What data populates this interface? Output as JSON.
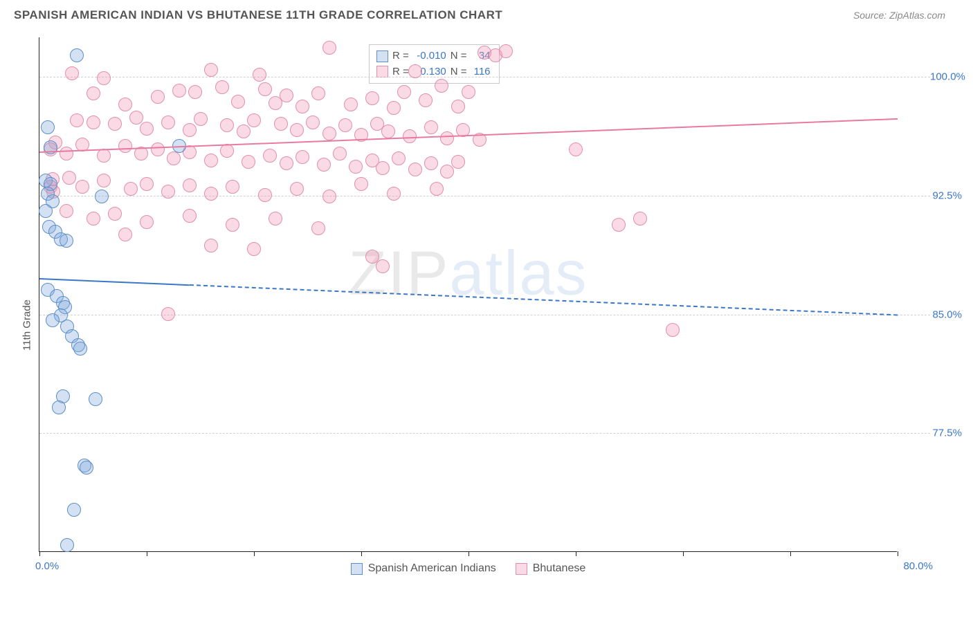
{
  "title": "SPANISH AMERICAN INDIAN VS BHUTANESE 11TH GRADE CORRELATION CHART",
  "source_label": "Source: ZipAtlas.com",
  "yaxis_label": "11th Grade",
  "watermark": {
    "zip": "ZIP",
    "atlas": "atlas"
  },
  "chart": {
    "type": "scatter",
    "xlim": [
      0,
      80
    ],
    "ylim": [
      70,
      102.5
    ],
    "xtick_left": "0.0%",
    "xtick_right": "80.0%",
    "xtick_positions_pct": [
      0,
      12.5,
      25,
      37.5,
      50,
      62.5,
      75,
      87.5,
      100
    ],
    "ytick_labels": [
      "77.5%",
      "85.0%",
      "92.5%",
      "100.0%"
    ],
    "ytick_values": [
      77.5,
      85.0,
      92.5,
      100.0
    ],
    "grid_color": "#d0d0d0",
    "background_color": "#ffffff",
    "point_radius": 10,
    "series": [
      {
        "name": "Spanish American Indians",
        "fill": "rgba(130,170,220,0.35)",
        "stroke": "#5c8fc9",
        "R": "-0.010",
        "N": "34",
        "trend": {
          "y_at_x0": 87.3,
          "y_at_x80": 85.0,
          "solid_until_x": 14
        },
        "points": [
          {
            "x": 3.5,
            "y": 101.3
          },
          {
            "x": 0.8,
            "y": 96.8
          },
          {
            "x": 1.0,
            "y": 95.5
          },
          {
            "x": 13.0,
            "y": 95.6
          },
          {
            "x": 0.6,
            "y": 93.4
          },
          {
            "x": 1.0,
            "y": 93.2
          },
          {
            "x": 0.8,
            "y": 92.6
          },
          {
            "x": 5.8,
            "y": 92.4
          },
          {
            "x": 1.2,
            "y": 92.1
          },
          {
            "x": 0.6,
            "y": 91.5
          },
          {
            "x": 0.9,
            "y": 90.5
          },
          {
            "x": 1.5,
            "y": 90.2
          },
          {
            "x": 2.0,
            "y": 89.7
          },
          {
            "x": 2.5,
            "y": 89.6
          },
          {
            "x": 0.8,
            "y": 86.5
          },
          {
            "x": 1.6,
            "y": 86.1
          },
          {
            "x": 2.2,
            "y": 85.7
          },
          {
            "x": 2.4,
            "y": 85.4
          },
          {
            "x": 2.0,
            "y": 84.9
          },
          {
            "x": 1.2,
            "y": 84.6
          },
          {
            "x": 2.6,
            "y": 84.2
          },
          {
            "x": 3.0,
            "y": 83.6
          },
          {
            "x": 3.6,
            "y": 83.0
          },
          {
            "x": 3.8,
            "y": 82.8
          },
          {
            "x": 2.2,
            "y": 79.8
          },
          {
            "x": 5.2,
            "y": 79.6
          },
          {
            "x": 1.8,
            "y": 79.1
          },
          {
            "x": 4.2,
            "y": 75.4
          },
          {
            "x": 4.4,
            "y": 75.3
          },
          {
            "x": 3.2,
            "y": 72.6
          },
          {
            "x": 2.6,
            "y": 70.4
          }
        ]
      },
      {
        "name": "Bhutanese",
        "fill": "rgba(240,150,180,0.35)",
        "stroke": "#e38fa8",
        "R": "0.130",
        "N": "116",
        "trend": {
          "y_at_x0": 95.3,
          "y_at_x80": 97.4,
          "solid_until_x": 80
        },
        "points": [
          {
            "x": 27,
            "y": 101.8
          },
          {
            "x": 41.5,
            "y": 101.5
          },
          {
            "x": 42.5,
            "y": 101.3
          },
          {
            "x": 43.5,
            "y": 101.6
          },
          {
            "x": 3,
            "y": 100.2
          },
          {
            "x": 6,
            "y": 99.9
          },
          {
            "x": 16,
            "y": 100.4
          },
          {
            "x": 20.5,
            "y": 100.1
          },
          {
            "x": 35,
            "y": 100.3
          },
          {
            "x": 5,
            "y": 98.9
          },
          {
            "x": 8,
            "y": 98.2
          },
          {
            "x": 11,
            "y": 98.7
          },
          {
            "x": 13,
            "y": 99.1
          },
          {
            "x": 14.5,
            "y": 99.0
          },
          {
            "x": 17,
            "y": 99.3
          },
          {
            "x": 18.5,
            "y": 98.4
          },
          {
            "x": 21,
            "y": 99.2
          },
          {
            "x": 22,
            "y": 98.3
          },
          {
            "x": 23,
            "y": 98.8
          },
          {
            "x": 24.5,
            "y": 98.1
          },
          {
            "x": 26,
            "y": 98.9
          },
          {
            "x": 29,
            "y": 98.2
          },
          {
            "x": 31,
            "y": 98.6
          },
          {
            "x": 33,
            "y": 98.0
          },
          {
            "x": 34,
            "y": 99.0
          },
          {
            "x": 36,
            "y": 98.5
          },
          {
            "x": 37.5,
            "y": 99.4
          },
          {
            "x": 39,
            "y": 98.1
          },
          {
            "x": 40,
            "y": 99.0
          },
          {
            "x": 3.5,
            "y": 97.2
          },
          {
            "x": 5,
            "y": 97.1
          },
          {
            "x": 7,
            "y": 97.0
          },
          {
            "x": 9,
            "y": 97.4
          },
          {
            "x": 10,
            "y": 96.7
          },
          {
            "x": 12,
            "y": 97.1
          },
          {
            "x": 14,
            "y": 96.6
          },
          {
            "x": 15,
            "y": 97.3
          },
          {
            "x": 17.5,
            "y": 96.9
          },
          {
            "x": 19,
            "y": 96.5
          },
          {
            "x": 20,
            "y": 97.2
          },
          {
            "x": 22.5,
            "y": 97.0
          },
          {
            "x": 24,
            "y": 96.6
          },
          {
            "x": 25.5,
            "y": 97.1
          },
          {
            "x": 27,
            "y": 96.4
          },
          {
            "x": 28.5,
            "y": 96.9
          },
          {
            "x": 30,
            "y": 96.3
          },
          {
            "x": 31.5,
            "y": 97.0
          },
          {
            "x": 32.5,
            "y": 96.5
          },
          {
            "x": 34.5,
            "y": 96.2
          },
          {
            "x": 36.5,
            "y": 96.8
          },
          {
            "x": 38,
            "y": 96.1
          },
          {
            "x": 39.5,
            "y": 96.6
          },
          {
            "x": 41,
            "y": 96.0
          },
          {
            "x": 50,
            "y": 95.4
          },
          {
            "x": 1.5,
            "y": 95.8
          },
          {
            "x": 1.0,
            "y": 95.4
          },
          {
            "x": 2.5,
            "y": 95.1
          },
          {
            "x": 4,
            "y": 95.7
          },
          {
            "x": 6,
            "y": 95.0
          },
          {
            "x": 8,
            "y": 95.6
          },
          {
            "x": 9.5,
            "y": 95.1
          },
          {
            "x": 11,
            "y": 95.4
          },
          {
            "x": 12.5,
            "y": 94.8
          },
          {
            "x": 14,
            "y": 95.2
          },
          {
            "x": 16,
            "y": 94.7
          },
          {
            "x": 17.5,
            "y": 95.3
          },
          {
            "x": 19.5,
            "y": 94.6
          },
          {
            "x": 21.5,
            "y": 95.0
          },
          {
            "x": 23,
            "y": 94.5
          },
          {
            "x": 24.5,
            "y": 94.9
          },
          {
            "x": 26.5,
            "y": 94.4
          },
          {
            "x": 28,
            "y": 95.1
          },
          {
            "x": 29.5,
            "y": 94.3
          },
          {
            "x": 31,
            "y": 94.7
          },
          {
            "x": 32,
            "y": 94.2
          },
          {
            "x": 33.5,
            "y": 94.8
          },
          {
            "x": 35,
            "y": 94.1
          },
          {
            "x": 36.5,
            "y": 94.5
          },
          {
            "x": 38,
            "y": 94.0
          },
          {
            "x": 39,
            "y": 94.6
          },
          {
            "x": 1.2,
            "y": 93.5
          },
          {
            "x": 1.0,
            "y": 93.0
          },
          {
            "x": 1.3,
            "y": 92.7
          },
          {
            "x": 2.8,
            "y": 93.6
          },
          {
            "x": 4,
            "y": 93.0
          },
          {
            "x": 6,
            "y": 93.4
          },
          {
            "x": 8.5,
            "y": 92.9
          },
          {
            "x": 10,
            "y": 93.2
          },
          {
            "x": 12,
            "y": 92.7
          },
          {
            "x": 14,
            "y": 93.1
          },
          {
            "x": 16,
            "y": 92.6
          },
          {
            "x": 18,
            "y": 93.0
          },
          {
            "x": 21,
            "y": 92.5
          },
          {
            "x": 24,
            "y": 92.9
          },
          {
            "x": 27,
            "y": 92.4
          },
          {
            "x": 30,
            "y": 93.2
          },
          {
            "x": 33,
            "y": 92.6
          },
          {
            "x": 37,
            "y": 92.9
          },
          {
            "x": 2.5,
            "y": 91.5
          },
          {
            "x": 5,
            "y": 91.0
          },
          {
            "x": 7,
            "y": 91.3
          },
          {
            "x": 10,
            "y": 90.8
          },
          {
            "x": 14,
            "y": 91.2
          },
          {
            "x": 18,
            "y": 90.6
          },
          {
            "x": 22,
            "y": 91.0
          },
          {
            "x": 26,
            "y": 90.4
          },
          {
            "x": 8,
            "y": 90.0
          },
          {
            "x": 16,
            "y": 89.3
          },
          {
            "x": 20,
            "y": 89.1
          },
          {
            "x": 31,
            "y": 88.6
          },
          {
            "x": 32,
            "y": 88.0
          },
          {
            "x": 56,
            "y": 91.0
          },
          {
            "x": 54,
            "y": 90.6
          },
          {
            "x": 12,
            "y": 85.0
          },
          {
            "x": 59,
            "y": 84.0
          }
        ]
      }
    ]
  },
  "legend_bottom": {
    "series1_label": "Spanish American Indians",
    "series2_label": "Bhutanese"
  },
  "legend_box": {
    "r_label": "R =",
    "n_label": "N ="
  }
}
